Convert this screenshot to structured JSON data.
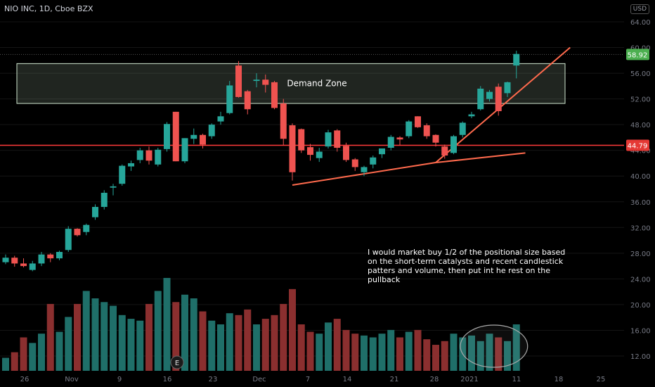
{
  "header": {
    "symbol_line": "NIO INC, 1D, Cboe BZX",
    "currency": "USD"
  },
  "annotations": {
    "demand_zone": "Demand Zone",
    "note": [
      "I would market buy 1/2 of the positional size based",
      "on the short-term catalysts and recent candlestick",
      "patters and volume, then put int he rest on the",
      "pullback"
    ],
    "earnings_marker": "E"
  },
  "colors": {
    "up": "#26a69a",
    "down": "#ef5350",
    "up_vol": "#1f6f69",
    "down_vol": "#8b2f2f",
    "price_line": "#ff3b3b",
    "trend": "#ff6a4d",
    "last_price": "#4caf50"
  },
  "chart_data": {
    "type": "candlestick",
    "title": "NIO INC, 1D, Cboe BZX",
    "y_axis": {
      "ticks": [
        "64.00",
        "60.00",
        "56.00",
        "52.00",
        "48.00",
        "44.00",
        "40.00",
        "36.00",
        "32.00",
        "28.00",
        "24.00",
        "20.00",
        "16.00",
        "12.00"
      ],
      "tick_values": [
        64,
        60,
        56,
        52,
        48,
        44,
        40,
        36,
        32,
        28,
        24,
        20,
        16,
        12
      ],
      "range": [
        10,
        66
      ]
    },
    "x_axis": {
      "ticks": [
        "26",
        "Nov",
        "9",
        "16",
        "23",
        "Dec",
        "7",
        "14",
        "21",
        "28",
        "2021",
        "11",
        "18",
        "25"
      ]
    },
    "price_labels": {
      "last": "58.92",
      "level": "44.79"
    },
    "levels": {
      "last": 58.92,
      "horizontal_line": 44.79
    },
    "demand_zone": [
      51.3,
      57.5
    ],
    "candles": [
      [
        26.6,
        27.8,
        26.3,
        27.3
      ],
      [
        27.3,
        27.6,
        25.9,
        26.4
      ],
      [
        26.4,
        27.2,
        25.8,
        26.0
      ],
      [
        25.4,
        26.8,
        25.2,
        26.4
      ],
      [
        26.4,
        28.2,
        26.0,
        27.8
      ],
      [
        27.8,
        28.0,
        26.6,
        27.2
      ],
      [
        27.2,
        28.4,
        26.9,
        28.2
      ],
      [
        28.5,
        32.2,
        28.2,
        31.8
      ],
      [
        31.8,
        31.9,
        30.6,
        30.8
      ],
      [
        31.3,
        32.6,
        30.8,
        32.4
      ],
      [
        33.6,
        35.6,
        33.2,
        35.2
      ],
      [
        35.2,
        37.8,
        34.8,
        37.4
      ],
      [
        38.2,
        38.8,
        37.0,
        38.4
      ],
      [
        38.8,
        41.8,
        38.5,
        41.6
      ],
      [
        41.5,
        42.4,
        40.8,
        42.0
      ],
      [
        42.5,
        44.4,
        42.0,
        44.0
      ],
      [
        44.0,
        44.6,
        41.8,
        42.4
      ],
      [
        41.8,
        44.4,
        41.5,
        44.1
      ],
      [
        44.2,
        48.4,
        43.8,
        48.1
      ],
      [
        50.0,
        50.0,
        42.3,
        42.3
      ],
      [
        42.3,
        45.9,
        42.0,
        45.9
      ],
      [
        45.8,
        47.4,
        45.0,
        46.4
      ],
      [
        46.4,
        46.6,
        44.3,
        44.9
      ],
      [
        46.2,
        48.2,
        45.8,
        48.0
      ],
      [
        48.5,
        50.0,
        48.0,
        49.3
      ],
      [
        49.8,
        54.8,
        49.6,
        54.1
      ],
      [
        57.2,
        57.9,
        52.2,
        52.3
      ],
      [
        53.2,
        53.4,
        49.6,
        50.4
      ],
      [
        54.8,
        56.0,
        53.8,
        55.0
      ],
      [
        55.0,
        55.8,
        53.0,
        54.2
      ],
      [
        54.6,
        54.8,
        50.4,
        50.6
      ],
      [
        51.3,
        52.0,
        44.8,
        45.8
      ],
      [
        47.9,
        48.2,
        39.3,
        40.6
      ],
      [
        47.3,
        47.4,
        43.6,
        44.0
      ],
      [
        44.5,
        45.0,
        42.4,
        43.3
      ],
      [
        42.8,
        44.4,
        42.2,
        43.8
      ],
      [
        44.6,
        47.2,
        44.3,
        46.8
      ],
      [
        47.1,
        47.3,
        43.8,
        44.4
      ],
      [
        44.7,
        45.2,
        42.2,
        42.5
      ],
      [
        42.6,
        42.8,
        40.8,
        41.4
      ],
      [
        40.6,
        41.6,
        40.0,
        41.4
      ],
      [
        41.8,
        43.2,
        41.2,
        42.9
      ],
      [
        43.4,
        44.3,
        42.8,
        44.3
      ],
      [
        44.4,
        46.4,
        44.0,
        46.1
      ],
      [
        46.0,
        46.2,
        44.8,
        45.7
      ],
      [
        46.2,
        48.7,
        45.9,
        48.5
      ],
      [
        49.3,
        49.3,
        47.5,
        47.6
      ],
      [
        47.9,
        48.2,
        45.8,
        46.2
      ],
      [
        46.4,
        46.5,
        44.6,
        45.2
      ],
      [
        44.6,
        44.9,
        42.7,
        43.2
      ],
      [
        43.6,
        46.4,
        43.4,
        46.2
      ],
      [
        46.4,
        48.5,
        46.0,
        48.3
      ],
      [
        49.3,
        50.0,
        49.0,
        49.6
      ],
      [
        50.4,
        54.0,
        50.2,
        53.6
      ],
      [
        52.0,
        53.4,
        51.6,
        53.1
      ],
      [
        53.9,
        54.4,
        49.4,
        50.1
      ],
      [
        52.9,
        54.7,
        52.3,
        54.6
      ],
      [
        57.2,
        59.5,
        55.2,
        59.0
      ]
    ],
    "volume_relative": [
      0.14,
      0.2,
      0.36,
      0.3,
      0.4,
      0.72,
      0.42,
      0.58,
      0.72,
      0.86,
      0.78,
      0.74,
      0.7,
      0.6,
      0.56,
      0.54,
      0.72,
      0.86,
      1.0,
      0.74,
      0.82,
      0.78,
      0.64,
      0.54,
      0.5,
      0.62,
      0.6,
      0.66,
      0.5,
      0.56,
      0.6,
      0.72,
      0.88,
      0.5,
      0.42,
      0.4,
      0.52,
      0.56,
      0.44,
      0.4,
      0.38,
      0.36,
      0.4,
      0.44,
      0.36,
      0.42,
      0.44,
      0.34,
      0.28,
      0.32,
      0.4,
      0.36,
      0.38,
      0.32,
      0.4,
      0.36,
      0.32,
      0.5
    ],
    "volume_highlight_index_range": [
      52,
      57
    ],
    "trendlines": [
      {
        "from": [
          32,
          38.6
        ],
        "to": [
          48,
          42.1
        ]
      },
      {
        "from": [
          48,
          42.1
        ],
        "to": [
          58,
          43.6
        ]
      },
      {
        "from": [
          48,
          42.1
        ],
        "to": [
          63,
          60.0
        ]
      }
    ]
  }
}
